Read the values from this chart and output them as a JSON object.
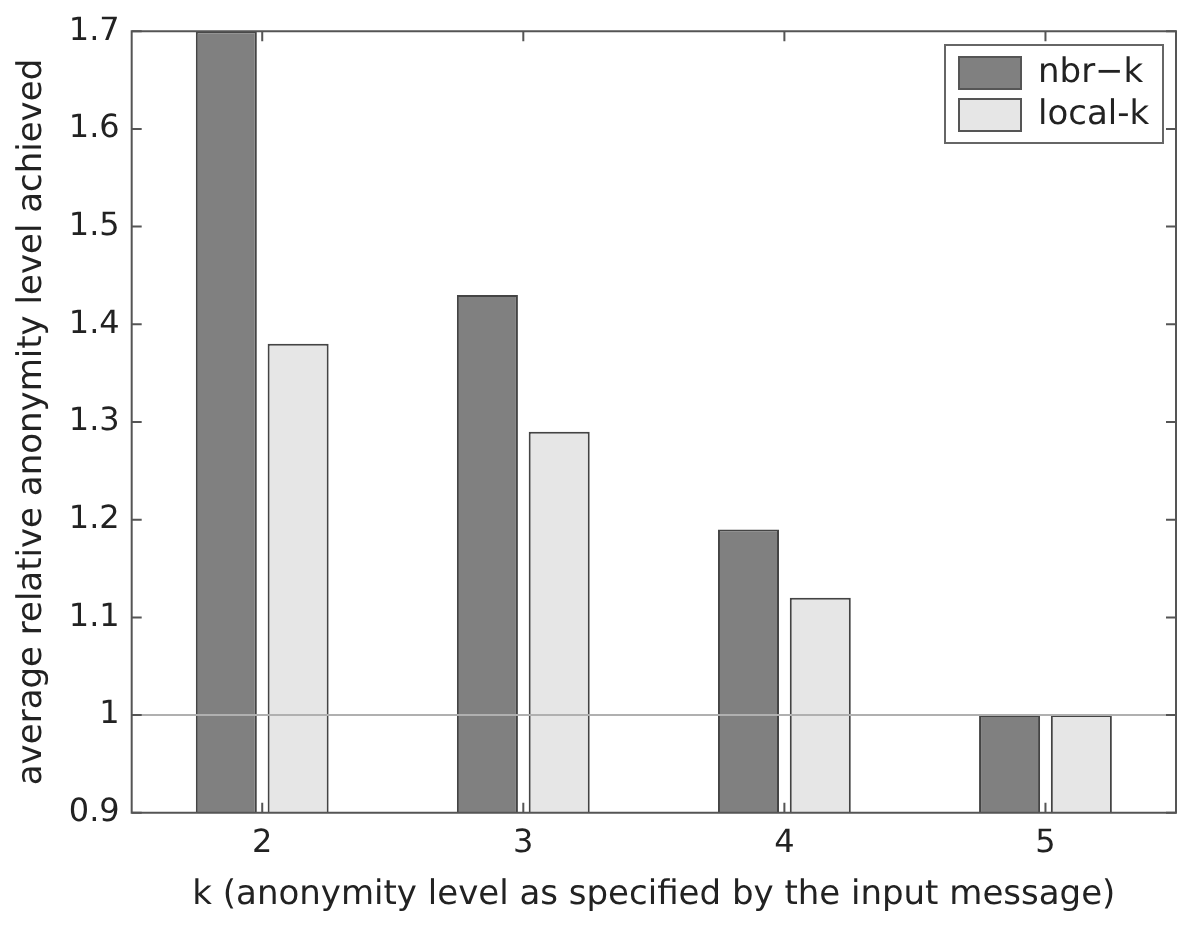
{
  "chart_data": {
    "type": "bar",
    "xlabel": "k (anonymity level as specified by the input message)",
    "ylabel": "average relative anonymity level achieved",
    "categories": [
      "2",
      "3",
      "4",
      "5"
    ],
    "series": [
      {
        "name": "nbr−k",
        "color": "#808080",
        "values": [
          1.7,
          1.43,
          1.19,
          1.0
        ]
      },
      {
        "name": "local-k",
        "color": "#e6e6e6",
        "values": [
          1.38,
          1.29,
          1.12,
          1.0
        ]
      }
    ],
    "ylim": [
      0.9,
      1.7
    ],
    "yticks": [
      0.9,
      1,
      1.1,
      1.2,
      1.3,
      1.4,
      1.5,
      1.6,
      1.7
    ],
    "ref_lines": [
      {
        "axis": "y",
        "value": 1,
        "color": "#b0b0b0"
      }
    ],
    "grid": false,
    "legend": "top right"
  }
}
